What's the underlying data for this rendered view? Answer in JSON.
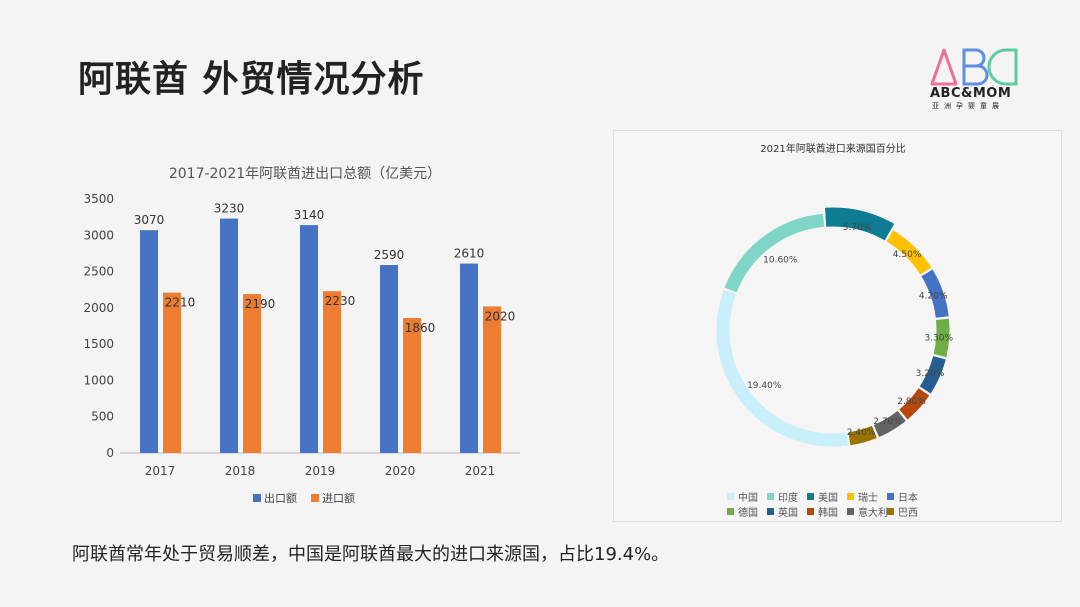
{
  "title": "阿联酋  外贸情况分析",
  "logo": {
    "text": "ABC&MOM",
    "sub": "亚洲孕婴童展",
    "letters": "ABC"
  },
  "summary": "阿联酋常年处于贸易顺差，中国是阿联酋最大的进口来源国，占比19.4%。",
  "chart_data": [
    {
      "type": "bar",
      "title": "2017-2021年阿联酋进出口总额（亿美元）",
      "categories": [
        "2017",
        "2018",
        "2019",
        "2020",
        "2021"
      ],
      "ylim": [
        0,
        3500
      ],
      "yticks": [
        "0",
        "500",
        "1000",
        "1500",
        "2000",
        "2500",
        "3000",
        "3500"
      ],
      "legend_position": "bottom",
      "grid": false,
      "series": [
        {
          "name": "出口额",
          "color": "#4472c4",
          "values": [
            3070,
            3230,
            3140,
            2590,
            2610
          ]
        },
        {
          "name": "进口额",
          "color": "#ed7d31",
          "values": [
            2210,
            2190,
            2230,
            1860,
            2020
          ]
        }
      ]
    },
    {
      "type": "pie",
      "title": "2021年阿联酋进口来源国百分比",
      "legend_position": "bottom",
      "slices": [
        {
          "name": "中国",
          "value": 19.4,
          "label": "19.40%",
          "color": "#c9effa"
        },
        {
          "name": "印度",
          "value": 10.6,
          "label": "10.60%",
          "color": "#7fd6c6"
        },
        {
          "name": "美国",
          "value": 5.7,
          "label": "5.70%",
          "color": "#0e7c93"
        },
        {
          "name": "瑞士",
          "value": 4.5,
          "label": "4.50%",
          "color": "#ffc000"
        },
        {
          "name": "日本",
          "value": 4.2,
          "label": "4.20%",
          "color": "#4472c4"
        },
        {
          "name": "德国",
          "value": 3.3,
          "label": "3.30%",
          "color": "#70ad47"
        },
        {
          "name": "英国",
          "value": 3.2,
          "label": "3.20%",
          "color": "#255e91"
        },
        {
          "name": "韩国",
          "value": 2.8,
          "label": "2.80%",
          "color": "#b5490c"
        },
        {
          "name": "意大利",
          "value": 2.7,
          "label": "2.70%",
          "color": "#636363"
        },
        {
          "name": "巴西",
          "value": 2.4,
          "label": "2.40%",
          "color": "#997300"
        }
      ]
    }
  ]
}
